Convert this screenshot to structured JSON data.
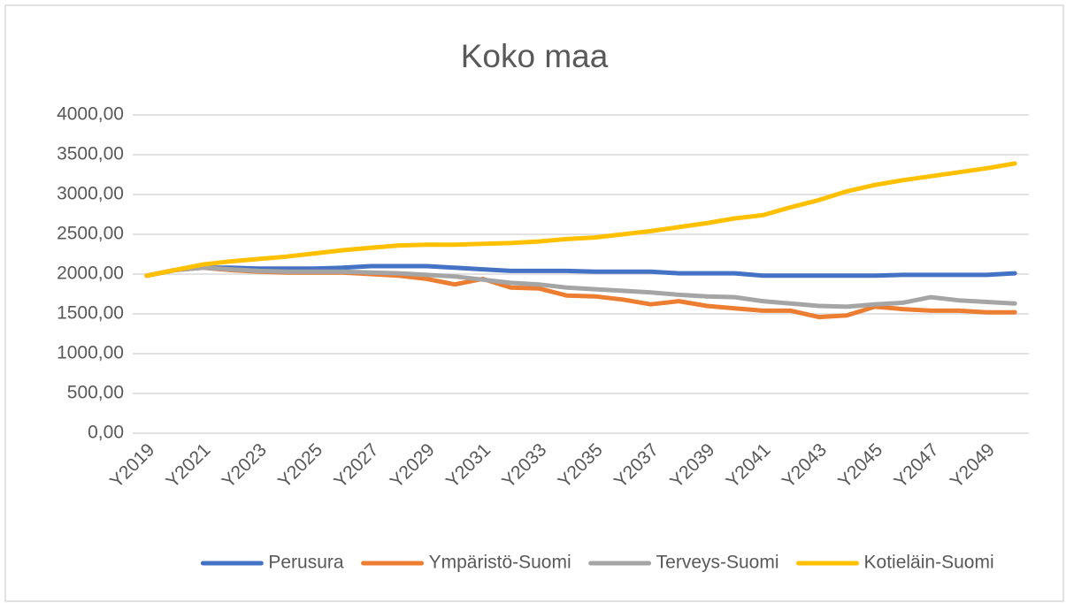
{
  "chart_data": {
    "type": "line",
    "title": "Koko maa",
    "categories": [
      "Y2019",
      null,
      "Y2021",
      null,
      "Y2023",
      null,
      "Y2025",
      null,
      "Y2027",
      null,
      "Y2029",
      null,
      "Y2031",
      null,
      "Y2033",
      null,
      "Y2035",
      null,
      "Y2037",
      null,
      "Y2039",
      null,
      "Y2041",
      null,
      "Y2043",
      null,
      "Y2045",
      null,
      "Y2047",
      null,
      "Y2049",
      null
    ],
    "series": [
      {
        "name": "Perusura",
        "color": "#4472c4",
        "values": [
          1980,
          2050,
          2080,
          2080,
          2070,
          2070,
          2070,
          2080,
          2100,
          2100,
          2100,
          2080,
          2060,
          2040,
          2040,
          2040,
          2030,
          2030,
          2030,
          2010,
          2010,
          2010,
          1980,
          1980,
          1980,
          1980,
          1980,
          1990,
          1990,
          1990,
          1990,
          2010
        ]
      },
      {
        "name": "Ympäristö-Suomi",
        "color": "#ed7d31",
        "values": [
          1980,
          2050,
          2080,
          2050,
          2030,
          2020,
          2020,
          2020,
          2000,
          1980,
          1940,
          1870,
          1940,
          1830,
          1820,
          1730,
          1720,
          1680,
          1620,
          1660,
          1600,
          1570,
          1540,
          1540,
          1460,
          1480,
          1590,
          1560,
          1540,
          1540,
          1520,
          1520
        ]
      },
      {
        "name": "Terveys-Suomi",
        "color": "#a5a5a5",
        "values": [
          1980,
          2050,
          2080,
          2060,
          2040,
          2030,
          2030,
          2030,
          2020,
          2010,
          1990,
          1970,
          1930,
          1890,
          1870,
          1830,
          1810,
          1790,
          1770,
          1740,
          1720,
          1710,
          1660,
          1630,
          1600,
          1590,
          1620,
          1640,
          1710,
          1670,
          1650,
          1630
        ]
      },
      {
        "name": "Kotieläin-Suomi",
        "color": "#ffc000",
        "values": [
          1980,
          2050,
          2120,
          2160,
          2190,
          2220,
          2260,
          2300,
          2330,
          2360,
          2370,
          2370,
          2380,
          2390,
          2410,
          2440,
          2460,
          2500,
          2540,
          2590,
          2640,
          2700,
          2740,
          2840,
          2930,
          3040,
          3120,
          3180,
          3230,
          3280,
          3330,
          3390
        ]
      }
    ],
    "ylim": [
      0,
      4000
    ],
    "yticks": [
      {
        "value": 0,
        "label": "0,00"
      },
      {
        "value": 500,
        "label": "500,00"
      },
      {
        "value": 1000,
        "label": "1000,00"
      },
      {
        "value": 1500,
        "label": "1500,00"
      },
      {
        "value": 2000,
        "label": "2000,00"
      },
      {
        "value": 2500,
        "label": "2500,00"
      },
      {
        "value": 3000,
        "label": "3000,00"
      },
      {
        "value": 3500,
        "label": "3500,00"
      },
      {
        "value": 4000,
        "label": "4000,00"
      }
    ],
    "grid": true,
    "legend": "bottom"
  }
}
